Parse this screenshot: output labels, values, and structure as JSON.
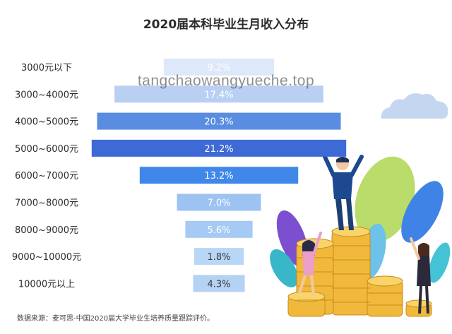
{
  "title": "2020届本科毕业生月收入分布",
  "watermark": "tangchaowangyueche.top",
  "source": "数据来源：麦可思-中国2020届大学毕业生培养质量跟踪评价。",
  "chart_data": {
    "type": "bar",
    "orientation": "horizontal-centered",
    "title": "2020届本科毕业生月收入分布",
    "categories": [
      "3000元以下",
      "3000~4000元",
      "4000~5000元",
      "5000~6000元",
      "6000~7000元",
      "7000~8000元",
      "8000~9000元",
      "9000~10000元",
      "10000元以上"
    ],
    "values": [
      9.2,
      17.4,
      20.3,
      21.2,
      13.2,
      7.0,
      5.6,
      1.8,
      4.3
    ],
    "value_labels": [
      "9.2%",
      "17.4%",
      "20.3%",
      "21.2%",
      "13.2%",
      "7.0%",
      "5.6%",
      "1.8%",
      "4.3%"
    ],
    "colors": [
      "#dde8fa",
      "#b9d0f3",
      "#5a8de2",
      "#3e6ad6",
      "#3f88ea",
      "#9cc3f2",
      "#a6caf3",
      "#b8d6f6",
      "#b3d2f4"
    ],
    "label_colors": [
      "#ffffff",
      "#ffffff",
      "#ffffff",
      "#ffffff",
      "#ffffff",
      "#ffffff",
      "#ffffff",
      "#3b3b3b",
      "#3b3b3b"
    ]
  }
}
